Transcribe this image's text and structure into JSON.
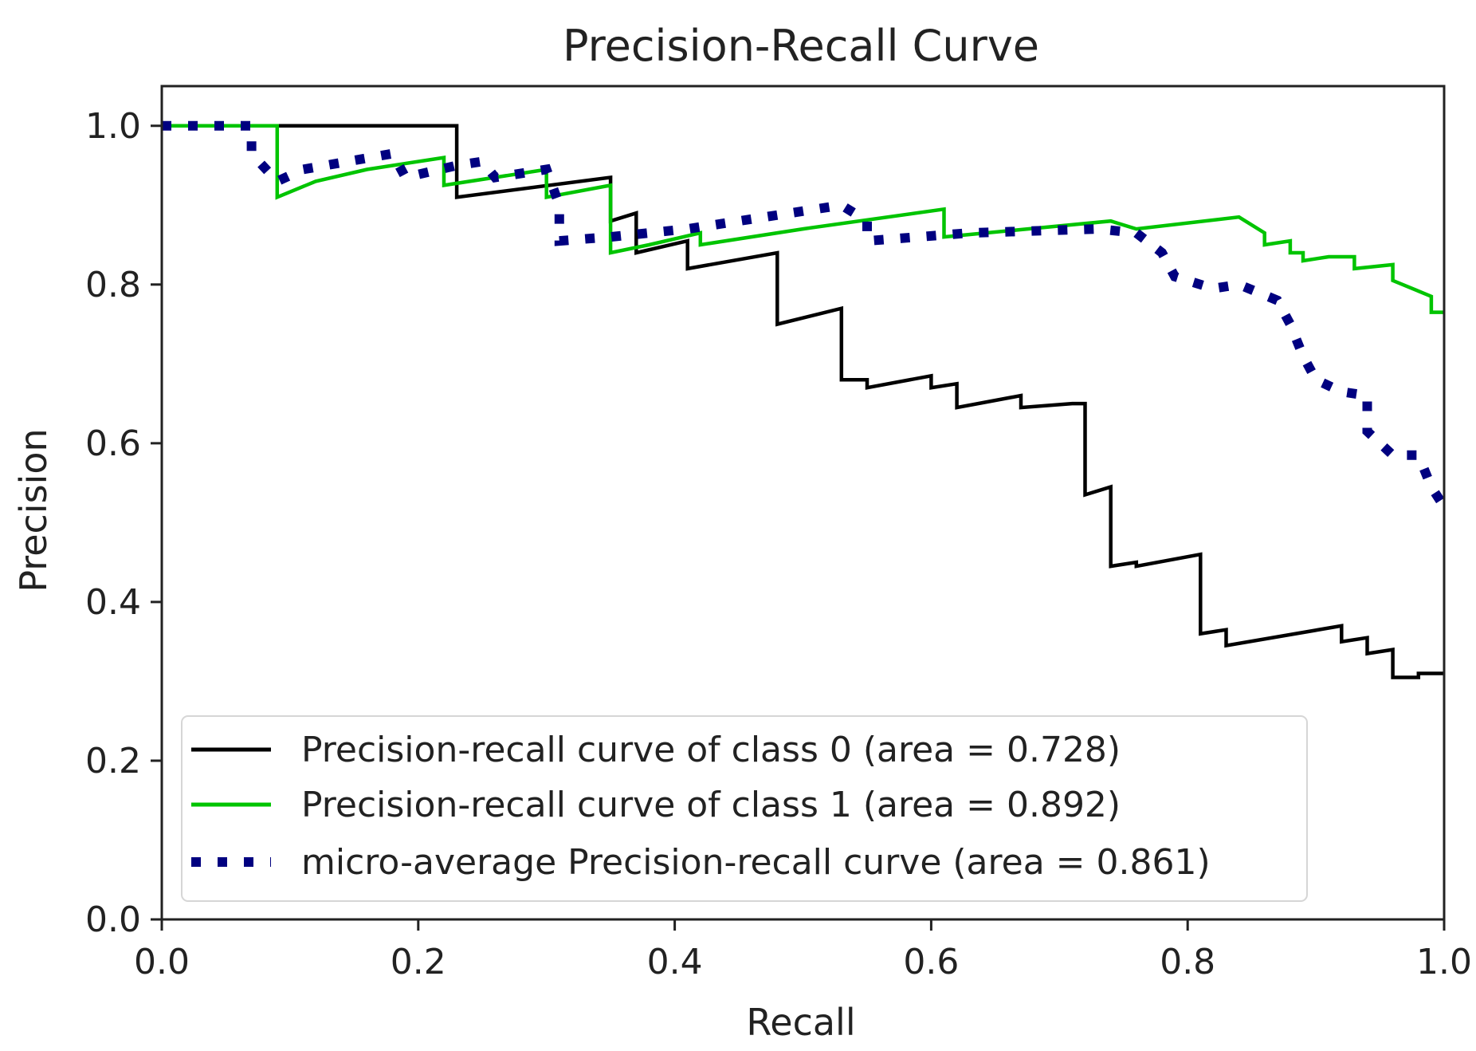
{
  "chart_data": {
    "type": "line",
    "title": "Precision-Recall Curve",
    "xlabel": "Recall",
    "ylabel": "Precision",
    "xlim": [
      0.0,
      1.0
    ],
    "ylim": [
      0.0,
      1.05
    ],
    "xticks": [
      "0.0",
      "0.2",
      "0.4",
      "0.6",
      "0.8",
      "1.0"
    ],
    "yticks": [
      "0.0",
      "0.2",
      "0.4",
      "0.6",
      "0.8",
      "1.0"
    ],
    "grid": false,
    "legend_position": "lower-left",
    "series": [
      {
        "name": "Precision-recall curve of class 0 (area = 0.728)",
        "color": "#000000",
        "style": "solid",
        "points": [
          [
            0.0,
            1.0
          ],
          [
            0.23,
            1.0
          ],
          [
            0.23,
            0.91
          ],
          [
            0.35,
            0.935
          ],
          [
            0.35,
            0.88
          ],
          [
            0.37,
            0.89
          ],
          [
            0.37,
            0.84
          ],
          [
            0.41,
            0.855
          ],
          [
            0.41,
            0.82
          ],
          [
            0.48,
            0.84
          ],
          [
            0.48,
            0.75
          ],
          [
            0.53,
            0.77
          ],
          [
            0.53,
            0.68
          ],
          [
            0.55,
            0.68
          ],
          [
            0.55,
            0.67
          ],
          [
            0.6,
            0.685
          ],
          [
            0.6,
            0.67
          ],
          [
            0.62,
            0.675
          ],
          [
            0.62,
            0.645
          ],
          [
            0.67,
            0.66
          ],
          [
            0.67,
            0.645
          ],
          [
            0.71,
            0.65
          ],
          [
            0.72,
            0.65
          ],
          [
            0.72,
            0.535
          ],
          [
            0.74,
            0.545
          ],
          [
            0.74,
            0.445
          ],
          [
            0.76,
            0.45
          ],
          [
            0.76,
            0.445
          ],
          [
            0.81,
            0.46
          ],
          [
            0.81,
            0.36
          ],
          [
            0.83,
            0.365
          ],
          [
            0.83,
            0.345
          ],
          [
            0.92,
            0.37
          ],
          [
            0.92,
            0.35
          ],
          [
            0.94,
            0.355
          ],
          [
            0.94,
            0.335
          ],
          [
            0.96,
            0.34
          ],
          [
            0.96,
            0.305
          ],
          [
            0.98,
            0.305
          ],
          [
            0.98,
            0.31
          ],
          [
            1.0,
            0.31
          ]
        ]
      },
      {
        "name": "Precision-recall curve of class 1 (area = 0.892)",
        "color": "#00c400",
        "style": "solid",
        "points": [
          [
            0.0,
            1.0
          ],
          [
            0.09,
            1.0
          ],
          [
            0.09,
            0.91
          ],
          [
            0.12,
            0.93
          ],
          [
            0.16,
            0.945
          ],
          [
            0.22,
            0.96
          ],
          [
            0.22,
            0.925
          ],
          [
            0.3,
            0.945
          ],
          [
            0.3,
            0.91
          ],
          [
            0.35,
            0.925
          ],
          [
            0.35,
            0.84
          ],
          [
            0.38,
            0.85
          ],
          [
            0.42,
            0.865
          ],
          [
            0.42,
            0.85
          ],
          [
            0.5,
            0.87
          ],
          [
            0.61,
            0.895
          ],
          [
            0.61,
            0.86
          ],
          [
            0.74,
            0.88
          ],
          [
            0.76,
            0.87
          ],
          [
            0.84,
            0.885
          ],
          [
            0.86,
            0.865
          ],
          [
            0.86,
            0.85
          ],
          [
            0.88,
            0.855
          ],
          [
            0.88,
            0.84
          ],
          [
            0.89,
            0.84
          ],
          [
            0.89,
            0.83
          ],
          [
            0.91,
            0.835
          ],
          [
            0.93,
            0.835
          ],
          [
            0.93,
            0.82
          ],
          [
            0.96,
            0.825
          ],
          [
            0.96,
            0.805
          ],
          [
            0.99,
            0.785
          ],
          [
            0.99,
            0.765
          ],
          [
            1.0,
            0.765
          ]
        ]
      },
      {
        "name": "micro-average Precision-recall curve (area = 0.861)",
        "color": "#000080",
        "style": "dotted",
        "points": [
          [
            0.0,
            1.0
          ],
          [
            0.07,
            1.0
          ],
          [
            0.07,
            0.965
          ],
          [
            0.09,
            0.93
          ],
          [
            0.11,
            0.945
          ],
          [
            0.18,
            0.965
          ],
          [
            0.19,
            0.935
          ],
          [
            0.23,
            0.95
          ],
          [
            0.25,
            0.955
          ],
          [
            0.26,
            0.935
          ],
          [
            0.3,
            0.945
          ],
          [
            0.31,
            0.9
          ],
          [
            0.31,
            0.855
          ],
          [
            0.35,
            0.86
          ],
          [
            0.41,
            0.87
          ],
          [
            0.45,
            0.88
          ],
          [
            0.53,
            0.9
          ],
          [
            0.55,
            0.88
          ],
          [
            0.55,
            0.855
          ],
          [
            0.63,
            0.865
          ],
          [
            0.73,
            0.87
          ],
          [
            0.76,
            0.865
          ],
          [
            0.78,
            0.84
          ],
          [
            0.79,
            0.81
          ],
          [
            0.82,
            0.795
          ],
          [
            0.84,
            0.8
          ],
          [
            0.87,
            0.78
          ],
          [
            0.88,
            0.75
          ],
          [
            0.89,
            0.71
          ],
          [
            0.9,
            0.68
          ],
          [
            0.92,
            0.665
          ],
          [
            0.94,
            0.66
          ],
          [
            0.94,
            0.615
          ],
          [
            0.96,
            0.585
          ],
          [
            0.98,
            0.585
          ],
          [
            0.99,
            0.545
          ],
          [
            1.0,
            0.52
          ]
        ]
      }
    ]
  }
}
